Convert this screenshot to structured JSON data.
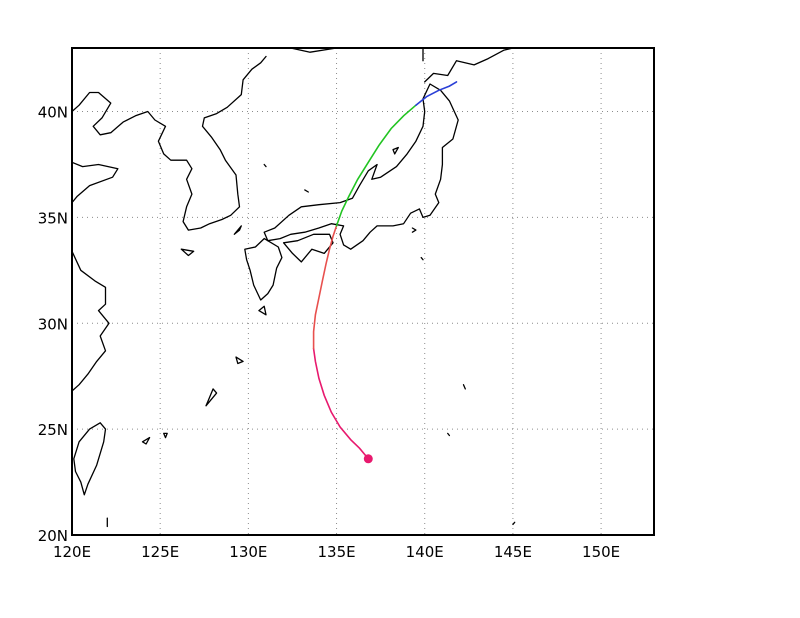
{
  "map": {
    "projection": "latlon",
    "lon_range": [
      120,
      153
    ],
    "lat_range": [
      20,
      43
    ],
    "x_ticks": [
      {
        "value": 120,
        "label": "120E"
      },
      {
        "value": 125,
        "label": "125E"
      },
      {
        "value": 130,
        "label": "130E"
      },
      {
        "value": 135,
        "label": "135E"
      },
      {
        "value": 140,
        "label": "140E"
      },
      {
        "value": 145,
        "label": "145E"
      },
      {
        "value": 150,
        "label": "150E"
      }
    ],
    "y_ticks": [
      {
        "value": 20,
        "label": "20N"
      },
      {
        "value": 25,
        "label": "25N"
      },
      {
        "value": 30,
        "label": "30N"
      },
      {
        "value": 35,
        "label": "35N"
      },
      {
        "value": 40,
        "label": "40N"
      }
    ],
    "grid": true,
    "colors": {
      "frame": "#000000",
      "grid": "#8c8c8c",
      "coast": "#000000",
      "background": "#ffffff"
    }
  },
  "track": {
    "start_marker": {
      "lon": 136.8,
      "lat": 23.6,
      "color": "#e8196e"
    },
    "segments": [
      {
        "color": "#e8196e",
        "points": [
          [
            136.8,
            23.6
          ],
          [
            136.3,
            24.1
          ],
          [
            135.8,
            24.5
          ],
          [
            135.2,
            25.1
          ],
          [
            134.7,
            25.8
          ],
          [
            134.3,
            26.6
          ],
          [
            134.0,
            27.4
          ],
          [
            133.8,
            28.2
          ],
          [
            133.7,
            28.8
          ]
        ]
      },
      {
        "color": "#e8504e",
        "points": [
          [
            133.7,
            28.8
          ],
          [
            133.7,
            29.6
          ],
          [
            133.8,
            30.4
          ],
          [
            134.0,
            31.2
          ],
          [
            134.2,
            32.0
          ],
          [
            134.4,
            32.8
          ],
          [
            134.6,
            33.5
          ],
          [
            134.8,
            34.1
          ],
          [
            135.0,
            34.6
          ]
        ]
      },
      {
        "color": "#22c422",
        "points": [
          [
            135.0,
            34.6
          ],
          [
            135.3,
            35.3
          ],
          [
            135.7,
            36.0
          ],
          [
            136.2,
            36.8
          ],
          [
            136.8,
            37.6
          ],
          [
            137.4,
            38.4
          ],
          [
            138.1,
            39.2
          ],
          [
            138.8,
            39.8
          ],
          [
            139.5,
            40.3
          ]
        ]
      },
      {
        "color": "#2a3fd6",
        "points": [
          [
            139.5,
            40.3
          ],
          [
            140.1,
            40.7
          ],
          [
            140.8,
            41.0
          ],
          [
            141.4,
            41.2
          ],
          [
            141.8,
            41.4
          ]
        ]
      }
    ]
  },
  "coastlines": [
    [
      [
        132.4,
        43.0
      ],
      [
        133.5,
        42.8
      ],
      [
        135.0,
        43.0
      ]
    ],
    [
      [
        131.0,
        42.6
      ],
      [
        130.7,
        42.3
      ],
      [
        130.2,
        42.0
      ],
      [
        129.7,
        41.5
      ],
      [
        129.6,
        40.8
      ],
      [
        128.8,
        40.2
      ],
      [
        128.2,
        39.9
      ],
      [
        127.5,
        39.7
      ],
      [
        127.4,
        39.3
      ],
      [
        127.9,
        38.8
      ],
      [
        128.4,
        38.2
      ],
      [
        128.7,
        37.7
      ],
      [
        129.3,
        37.0
      ],
      [
        129.4,
        36.1
      ],
      [
        129.5,
        35.5
      ],
      [
        129.0,
        35.1
      ],
      [
        128.5,
        34.9
      ],
      [
        127.8,
        34.7
      ],
      [
        127.3,
        34.5
      ],
      [
        126.6,
        34.4
      ],
      [
        126.3,
        34.8
      ],
      [
        126.5,
        35.5
      ],
      [
        126.8,
        36.1
      ],
      [
        126.5,
        36.8
      ],
      [
        126.8,
        37.3
      ],
      [
        126.5,
        37.7
      ],
      [
        125.6,
        37.7
      ],
      [
        125.2,
        38.0
      ],
      [
        124.9,
        38.6
      ],
      [
        125.3,
        39.3
      ],
      [
        124.7,
        39.6
      ],
      [
        124.3,
        40.0
      ],
      [
        123.6,
        39.8
      ],
      [
        122.9,
        39.5
      ],
      [
        122.2,
        39.0
      ],
      [
        121.6,
        38.9
      ],
      [
        121.2,
        39.3
      ],
      [
        121.7,
        39.7
      ],
      [
        122.2,
        40.4
      ],
      [
        121.5,
        40.9
      ],
      [
        121.0,
        40.9
      ],
      [
        120.4,
        40.3
      ],
      [
        120.0,
        40.0
      ]
    ],
    [
      [
        120.0,
        37.6
      ],
      [
        120.6,
        37.4
      ],
      [
        121.5,
        37.5
      ],
      [
        122.6,
        37.3
      ],
      [
        122.3,
        36.9
      ],
      [
        121.0,
        36.5
      ],
      [
        120.3,
        36.0
      ],
      [
        120.0,
        35.7
      ]
    ],
    [
      [
        120.0,
        33.4
      ],
      [
        120.5,
        32.5
      ],
      [
        121.3,
        32.0
      ],
      [
        121.9,
        31.7
      ],
      [
        121.9,
        30.9
      ],
      [
        121.5,
        30.6
      ],
      [
        122.1,
        30.0
      ],
      [
        121.6,
        29.4
      ],
      [
        121.9,
        28.7
      ],
      [
        121.4,
        28.2
      ],
      [
        120.9,
        27.6
      ],
      [
        120.4,
        27.1
      ],
      [
        120.0,
        26.8
      ]
    ],
    [
      [
        121.6,
        25.3
      ],
      [
        121.9,
        25.0
      ],
      [
        121.8,
        24.4
      ],
      [
        121.4,
        23.3
      ],
      [
        120.9,
        22.4
      ],
      [
        120.7,
        21.9
      ],
      [
        120.5,
        22.5
      ],
      [
        120.2,
        23.0
      ],
      [
        120.1,
        23.6
      ],
      [
        120.4,
        24.4
      ],
      [
        121.0,
        25.0
      ],
      [
        121.6,
        25.3
      ]
    ],
    [
      [
        130.9,
        34.0
      ],
      [
        130.4,
        33.6
      ],
      [
        129.8,
        33.5
      ],
      [
        129.9,
        33.0
      ],
      [
        130.1,
        32.5
      ],
      [
        130.3,
        31.8
      ],
      [
        130.7,
        31.1
      ],
      [
        131.1,
        31.4
      ],
      [
        131.4,
        31.8
      ],
      [
        131.6,
        32.6
      ],
      [
        131.9,
        33.1
      ],
      [
        131.7,
        33.6
      ],
      [
        131.1,
        33.9
      ],
      [
        130.9,
        34.0
      ]
    ],
    [
      [
        130.9,
        34.3
      ],
      [
        131.5,
        34.5
      ],
      [
        132.3,
        35.1
      ],
      [
        133.0,
        35.5
      ],
      [
        134.0,
        35.6
      ],
      [
        135.2,
        35.7
      ],
      [
        135.9,
        35.9
      ],
      [
        136.3,
        36.5
      ],
      [
        136.8,
        37.2
      ],
      [
        137.3,
        37.5
      ],
      [
        137.0,
        36.8
      ],
      [
        137.5,
        36.9
      ],
      [
        138.4,
        37.4
      ],
      [
        139.0,
        38.0
      ],
      [
        139.5,
        38.6
      ],
      [
        139.9,
        39.3
      ],
      [
        140.0,
        40.0
      ],
      [
        139.9,
        40.6
      ],
      [
        140.3,
        41.3
      ],
      [
        140.9,
        41.0
      ],
      [
        141.4,
        40.5
      ],
      [
        141.9,
        39.6
      ],
      [
        141.6,
        38.7
      ],
      [
        141.0,
        38.3
      ],
      [
        141.0,
        37.5
      ],
      [
        140.9,
        36.8
      ],
      [
        140.6,
        36.1
      ],
      [
        140.8,
        35.7
      ],
      [
        140.3,
        35.1
      ],
      [
        139.9,
        35.0
      ],
      [
        139.7,
        35.4
      ],
      [
        139.2,
        35.2
      ],
      [
        138.8,
        34.7
      ],
      [
        138.2,
        34.6
      ],
      [
        137.3,
        34.6
      ],
      [
        136.9,
        34.3
      ],
      [
        136.5,
        33.9
      ],
      [
        135.8,
        33.5
      ],
      [
        135.4,
        33.7
      ],
      [
        135.2,
        34.2
      ],
      [
        135.4,
        34.6
      ],
      [
        134.7,
        34.7
      ],
      [
        134.0,
        34.5
      ],
      [
        133.2,
        34.3
      ],
      [
        132.4,
        34.2
      ],
      [
        131.8,
        34.0
      ],
      [
        131.1,
        33.9
      ],
      [
        130.9,
        34.3
      ]
    ],
    [
      [
        132.0,
        33.8
      ],
      [
        132.8,
        33.9
      ],
      [
        133.7,
        34.2
      ],
      [
        134.6,
        34.2
      ],
      [
        134.8,
        33.8
      ],
      [
        134.3,
        33.3
      ],
      [
        133.6,
        33.5
      ],
      [
        133.0,
        32.9
      ],
      [
        132.5,
        33.3
      ],
      [
        132.0,
        33.8
      ]
    ],
    [
      [
        140.0,
        41.4
      ],
      [
        140.5,
        41.8
      ],
      [
        141.3,
        41.7
      ],
      [
        141.8,
        42.4
      ],
      [
        142.8,
        42.2
      ],
      [
        143.6,
        42.5
      ],
      [
        144.5,
        42.9
      ],
      [
        145.0,
        43.0
      ]
    ],
    [
      [
        139.9,
        42.4
      ],
      [
        139.9,
        43.0
      ]
    ],
    [
      [
        125.0,
        43.0
      ],
      [
        124.5,
        43.0
      ]
    ],
    [
      [
        120.0,
        40.7
      ],
      [
        120.0,
        40.0
      ]
    ]
  ],
  "islands": [
    [
      [
        129.6,
        34.6
      ],
      [
        129.2,
        34.2
      ],
      [
        129.5,
        34.4
      ],
      [
        129.6,
        34.6
      ]
    ],
    [
      [
        126.2,
        33.5
      ],
      [
        126.9,
        33.4
      ],
      [
        126.6,
        33.2
      ],
      [
        126.2,
        33.5
      ]
    ],
    [
      [
        130.6,
        30.6
      ],
      [
        131.0,
        30.4
      ],
      [
        130.9,
        30.8
      ],
      [
        130.6,
        30.6
      ]
    ],
    [
      [
        127.6,
        26.1
      ],
      [
        128.2,
        26.7
      ],
      [
        128.0,
        26.9
      ],
      [
        127.7,
        26.3
      ],
      [
        127.6,
        26.1
      ]
    ],
    [
      [
        129.3,
        28.4
      ],
      [
        129.7,
        28.2
      ],
      [
        129.4,
        28.1
      ],
      [
        129.3,
        28.4
      ]
    ],
    [
      [
        124.0,
        24.4
      ],
      [
        124.4,
        24.6
      ],
      [
        124.2,
        24.3
      ],
      [
        124.0,
        24.4
      ]
    ],
    [
      [
        125.2,
        24.8
      ],
      [
        125.4,
        24.8
      ],
      [
        125.3,
        24.6
      ],
      [
        125.2,
        24.8
      ]
    ],
    [
      [
        139.3,
        34.5
      ],
      [
        139.5,
        34.4
      ],
      [
        139.3,
        34.3
      ]
    ],
    [
      [
        139.8,
        33.1
      ],
      [
        139.9,
        33.0
      ]
    ],
    [
      [
        142.2,
        27.1
      ],
      [
        142.3,
        26.9
      ]
    ],
    [
      [
        141.3,
        24.8
      ],
      [
        141.4,
        24.7
      ]
    ],
    [
      [
        138.3,
        38.0
      ],
      [
        138.5,
        38.3
      ],
      [
        138.2,
        38.2
      ],
      [
        138.3,
        38.0
      ]
    ],
    [
      [
        133.2,
        36.3
      ],
      [
        133.4,
        36.2
      ]
    ],
    [
      [
        130.9,
        37.5
      ],
      [
        131.0,
        37.4
      ]
    ],
    [
      [
        145.0,
        20.5
      ],
      [
        145.1,
        20.6
      ]
    ],
    [
      [
        122.0,
        20.8
      ],
      [
        122.0,
        20.4
      ]
    ]
  ]
}
